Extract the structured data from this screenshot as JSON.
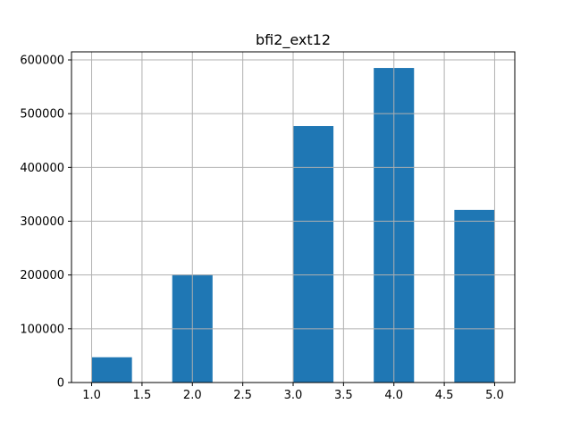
{
  "chart_data": {
    "type": "bar",
    "title": "bfi2_ext12",
    "xlabel": "",
    "ylabel": "",
    "bins": [
      {
        "x0": 1.0,
        "x1": 1.4,
        "value": 47000
      },
      {
        "x0": 1.4,
        "x1": 1.8,
        "value": 0
      },
      {
        "x0": 1.8,
        "x1": 2.2,
        "value": 201000
      },
      {
        "x0": 2.2,
        "x1": 2.6,
        "value": 0
      },
      {
        "x0": 2.6,
        "x1": 3.0,
        "value": 0
      },
      {
        "x0": 3.0,
        "x1": 3.4,
        "value": 477000
      },
      {
        "x0": 3.4,
        "x1": 3.8,
        "value": 0
      },
      {
        "x0": 3.8,
        "x1": 4.2,
        "value": 585000
      },
      {
        "x0": 4.2,
        "x1": 4.6,
        "value": 0
      },
      {
        "x0": 4.6,
        "x1": 5.0,
        "value": 321000
      }
    ],
    "xlim": [
      0.8,
      5.2
    ],
    "ylim": [
      0,
      615000
    ],
    "x_ticks": [
      "1.0",
      "1.5",
      "2.0",
      "2.5",
      "3.0",
      "3.5",
      "4.0",
      "4.5",
      "5.0"
    ],
    "y_ticks": [
      "0",
      "100000",
      "200000",
      "300000",
      "400000",
      "500000",
      "600000"
    ],
    "grid": true,
    "legend": "none",
    "bar_color": "#1f77b4",
    "grid_color": "#b0b0b0"
  }
}
